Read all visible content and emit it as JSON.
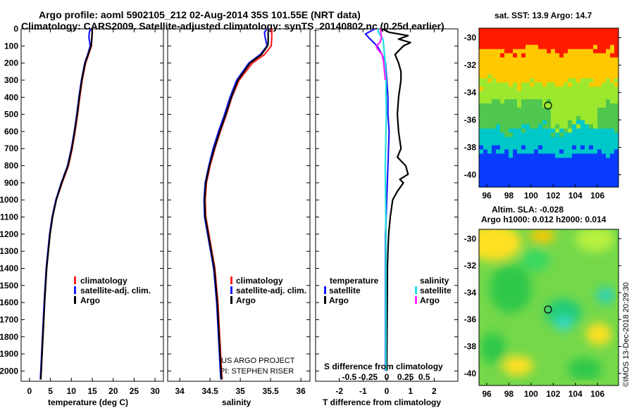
{
  "header": {
    "line1": "Argo profile: aoml 5902105_212 02-Aug-2014 35S 101.55E (NRT data)",
    "line2": "Climatology: CARS2009. Satellite-adjusted climatology: synTS_20140802.nc (0.25d earlier)"
  },
  "credit": {
    "imos": "©IMOS 13-Dec-2018 20:29:30",
    "project": "US ARGO PROJECT",
    "pi": "PI: STEPHEN RISER"
  },
  "colors": {
    "climatology": "#ff2020",
    "satellite": "#1a1aff",
    "argo": "#000000",
    "cyan": "#20e0e0",
    "magenta": "#ff20ff"
  },
  "chart_data": [
    {
      "type": "line",
      "id": "temperature",
      "title": "",
      "xlabel": "temperature (deg C)",
      "ylabel": "",
      "xlim": [
        -2,
        32
      ],
      "ylim": [
        2060,
        0
      ],
      "xticks": [
        0,
        5,
        10,
        15,
        20,
        25,
        30
      ],
      "xtick_labels": [
        "0",
        "5",
        "10",
        "15",
        "20",
        "25",
        "30"
      ],
      "yticks": [
        0,
        100,
        200,
        300,
        400,
        500,
        600,
        700,
        800,
        900,
        1000,
        1100,
        1200,
        1300,
        1400,
        1500,
        1600,
        1700,
        1800,
        1900,
        2000
      ],
      "ytick_labels": [
        "0",
        "100",
        "200",
        "300",
        "400",
        "500",
        "600",
        "700",
        "800",
        "900",
        "1000",
        "1100",
        "1200",
        "1300",
        "1400",
        "1500",
        "1600",
        "1700",
        "1800",
        "1900",
        "2000"
      ],
      "legend": {
        "position": "lower-center",
        "entries": [
          "climatology",
          "satellite-adj. clim.",
          "Argo"
        ]
      },
      "series": [
        {
          "name": "climatology",
          "color": "#ff2020",
          "y": [
            0,
            50,
            100,
            150,
            200,
            300,
            400,
            500,
            600,
            700,
            800,
            900,
            1000,
            1100,
            1200,
            1400,
            1600,
            1800,
            2000,
            2050
          ],
          "x": [
            15.0,
            14.9,
            14.8,
            14.1,
            13.4,
            12.6,
            12.0,
            11.5,
            10.9,
            10.2,
            9.3,
            7.8,
            6.4,
            5.5,
            4.9,
            4.1,
            3.6,
            3.2,
            2.8,
            2.7
          ]
        },
        {
          "name": "satellite-adj. clim.",
          "color": "#1a1aff",
          "y": [
            0,
            20,
            50,
            80,
            100,
            150,
            200,
            300,
            400,
            500,
            600,
            700,
            800,
            900,
            1000,
            1100,
            1200,
            1400,
            1600,
            1800,
            2000,
            2050
          ],
          "x": [
            14.6,
            14.3,
            14.2,
            14.4,
            14.5,
            13.9,
            13.2,
            12.4,
            11.8,
            11.3,
            10.7,
            10.0,
            9.1,
            7.6,
            6.3,
            5.4,
            4.8,
            4.0,
            3.5,
            3.1,
            2.7,
            2.6
          ]
        },
        {
          "name": "Argo",
          "color": "#000000",
          "y": [
            0,
            20,
            50,
            80,
            100,
            150,
            200,
            300,
            400,
            500,
            600,
            700,
            800,
            900,
            1000,
            1100,
            1200,
            1400,
            1600,
            1800,
            2000,
            2050
          ],
          "x": [
            14.9,
            15.0,
            14.9,
            14.8,
            14.7,
            14.0,
            13.3,
            12.5,
            11.9,
            11.4,
            10.8,
            10.1,
            9.2,
            7.7,
            6.4,
            5.5,
            4.9,
            4.1,
            3.6,
            3.2,
            2.8,
            2.7
          ]
        }
      ]
    },
    {
      "type": "line",
      "id": "salinity",
      "title": "",
      "xlabel": "salinity",
      "ylabel": "",
      "xlim": [
        33.8,
        36.15
      ],
      "ylim": [
        2060,
        0
      ],
      "xticks": [
        34,
        34.5,
        35,
        35.5,
        36
      ],
      "xtick_labels": [
        "34",
        "34.5",
        "35",
        "35.5",
        "36"
      ],
      "legend": {
        "position": "lower-center",
        "entries": [
          "climatology",
          "satellite-adj. clim.",
          "Argo"
        ]
      },
      "series": [
        {
          "name": "climatology",
          "color": "#ff2020",
          "y": [
            0,
            50,
            100,
            150,
            200,
            300,
            400,
            500,
            600,
            700,
            800,
            900,
            1000,
            1100,
            1200,
            1400,
            1600,
            1800,
            2000,
            2050
          ],
          "x": [
            35.52,
            35.52,
            35.51,
            35.4,
            35.2,
            34.98,
            34.86,
            34.77,
            34.67,
            34.58,
            34.5,
            34.44,
            34.42,
            34.43,
            34.48,
            34.58,
            34.63,
            34.66,
            34.69,
            34.7
          ]
        },
        {
          "name": "satellite-adj. clim.",
          "color": "#1a1aff",
          "y": [
            0,
            20,
            50,
            80,
            100,
            150,
            200,
            300,
            400,
            500,
            600,
            700,
            800,
            900,
            1000,
            1100,
            1200,
            1400,
            1600,
            1800,
            2000,
            2050
          ],
          "x": [
            35.44,
            35.4,
            35.41,
            35.43,
            35.44,
            35.33,
            35.14,
            34.94,
            34.83,
            34.74,
            34.64,
            34.55,
            34.48,
            34.42,
            34.4,
            34.41,
            34.46,
            34.56,
            34.61,
            34.64,
            34.67,
            34.68
          ]
        },
        {
          "name": "Argo",
          "color": "#000000",
          "y": [
            0,
            20,
            50,
            80,
            100,
            150,
            200,
            300,
            400,
            500,
            600,
            700,
            800,
            900,
            1000,
            1100,
            1200,
            1400,
            1600,
            1800,
            2000,
            2050
          ],
          "x": [
            35.47,
            35.46,
            35.46,
            35.46,
            35.45,
            35.35,
            35.16,
            34.96,
            34.85,
            34.76,
            34.66,
            34.57,
            34.49,
            34.43,
            34.41,
            34.42,
            34.47,
            34.57,
            34.62,
            34.65,
            34.68,
            34.69
          ]
        }
      ]
    },
    {
      "type": "line",
      "id": "difference",
      "title": "",
      "xlabel": "T difference from climatology",
      "xlabel_top": "S difference from climatology",
      "xlim": [
        -3.0,
        3.0
      ],
      "ylim": [
        2060,
        0
      ],
      "xticks": [
        -2,
        -1,
        0,
        1,
        2
      ],
      "xtick_labels": [
        "-2",
        "-1",
        "0",
        "1",
        "2"
      ],
      "s_ticks": [
        -0.5,
        -0.25,
        0,
        0.25,
        0.5
      ],
      "s_tick_labels": [
        "-0.5",
        "-0.25",
        "0",
        "0.25",
        "0.5"
      ],
      "legend": {
        "position": "lower",
        "temperature_title": "temperature",
        "salinity_title": "salinity",
        "entries": [
          "satellite",
          "Argo",
          "satellite",
          "Argo"
        ]
      },
      "series": [
        {
          "name": "T satellite",
          "color": "#1a1aff",
          "y": [
            0,
            30,
            60,
            100,
            150,
            200,
            300,
            400,
            500,
            600,
            800,
            1000,
            1200,
            1400,
            1600,
            1800,
            2000
          ],
          "x": [
            -0.5,
            -0.9,
            -0.7,
            -0.4,
            -0.2,
            -0.05,
            0.0,
            0.05,
            0.05,
            0.1,
            0.05,
            0.0,
            -0.05,
            -0.05,
            -0.05,
            -0.05,
            -0.05
          ]
        },
        {
          "name": "T Argo",
          "color": "#000000",
          "y": [
            0,
            20,
            40,
            60,
            80,
            100,
            150,
            200,
            250,
            300,
            400,
            500,
            600,
            700,
            750,
            800,
            850,
            880,
            900,
            950,
            1000,
            1100,
            1200,
            1300,
            1400,
            1600,
            1800,
            2000
          ],
          "x": [
            -0.2,
            0.1,
            0.9,
            0.5,
            1.0,
            0.7,
            0.35,
            0.5,
            0.6,
            0.6,
            0.5,
            0.45,
            0.5,
            0.6,
            0.45,
            0.8,
            0.9,
            0.55,
            0.7,
            0.45,
            0.25,
            0.15,
            0.08,
            0.05,
            0.03,
            0.02,
            0.01,
            0.0
          ]
        },
        {
          "name": "S satellite",
          "color": "#20e0e0",
          "y": [
            0,
            30,
            60,
            100,
            150,
            200,
            300,
            400,
            500,
            600,
            800,
            1000,
            1200,
            1400,
            1600,
            1800,
            2000
          ],
          "x": [
            -0.12,
            -0.1,
            -0.05,
            -0.04,
            -0.03,
            -0.02,
            -0.01,
            -0.01,
            -0.005,
            -0.01,
            -0.02,
            -0.015,
            -0.01,
            -0.01,
            -0.01,
            -0.01,
            -0.01
          ]
        },
        {
          "name": "S Argo",
          "color": "#ff20ff",
          "y": [
            0,
            20,
            50,
            80,
            100,
            120,
            150,
            200,
            300
          ],
          "x": [
            -0.08,
            -0.08,
            -0.07,
            -0.09,
            -0.14,
            -0.12,
            -0.06,
            -0.04,
            -0.02
          ]
        }
      ]
    },
    {
      "type": "heatmap",
      "id": "sst-map",
      "title": "sat. SST: 13.9 Argo: 14.7",
      "xlim": [
        95.3,
        107.9
      ],
      "ylim": [
        -40.9,
        -29.3
      ],
      "xticks": [
        96,
        98,
        100,
        102,
        104,
        106
      ],
      "xtick_labels": [
        "96",
        "98",
        "100",
        "102",
        "104",
        "106"
      ],
      "yticks": [
        -30,
        -32,
        -34,
        -36,
        -38,
        -40
      ],
      "ytick_labels": [
        "-30",
        "-32",
        "-34",
        "-36",
        "-38",
        "-40"
      ],
      "marker": {
        "lon": 101.55,
        "lat": -35.0
      }
    },
    {
      "type": "heatmap",
      "id": "sla-map",
      "title": "Altim. SLA: -0.028",
      "subtitle": "Argo h1000: 0.012 h2000: 0.014",
      "xlim": [
        95.3,
        107.9
      ],
      "ylim": [
        -40.9,
        -29.3
      ],
      "xticks": [
        96,
        98,
        100,
        102,
        104,
        106
      ],
      "xtick_labels": [
        "96",
        "98",
        "100",
        "102",
        "104",
        "106"
      ],
      "yticks": [
        -30,
        -32,
        -34,
        -36,
        -38,
        -40
      ],
      "ytick_labels": [
        "-30",
        "-32",
        "-34",
        "-36",
        "-38",
        "-40"
      ],
      "marker": {
        "lon": 101.55,
        "lat": -35.0
      }
    }
  ]
}
